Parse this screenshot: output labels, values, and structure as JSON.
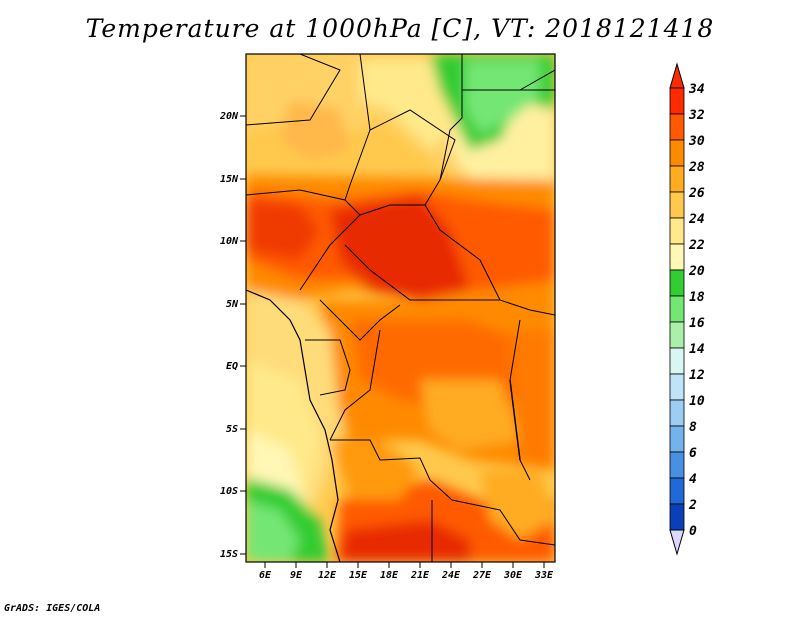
{
  "title": "Temperature at 1000hPa [C], VT: 2018121418",
  "credit": "GrADS: IGES/COLA",
  "map": {
    "lat_ticks": [
      "20N",
      "15N",
      "10N",
      "5N",
      "EQ",
      "5S",
      "10S",
      "15S"
    ],
    "lon_ticks": [
      "6E",
      "9E",
      "12E",
      "15E",
      "18E",
      "21E",
      "24E",
      "27E",
      "30E",
      "33E"
    ]
  },
  "colorbar": {
    "labels": [
      "34",
      "32",
      "30",
      "28",
      "26",
      "24",
      "22",
      "20",
      "18",
      "16",
      "14",
      "12",
      "10",
      "8",
      "6",
      "4",
      "2",
      "0"
    ],
    "colors": [
      "#ff2a00",
      "#ff5a00",
      "#ff8a00",
      "#ffac20",
      "#ffc94d",
      "#ffe98a",
      "#fff7b5",
      "#33cc33",
      "#73e673",
      "#aaf0aa",
      "#d9f7f2",
      "#bfe3f7",
      "#9dcdf2",
      "#74b2ec",
      "#4a90e2",
      "#2169d6",
      "#0a3fb8",
      "#0a1f80"
    ],
    "top_color": "#ff2a00",
    "bottom_color": "#dcd8ff"
  }
}
